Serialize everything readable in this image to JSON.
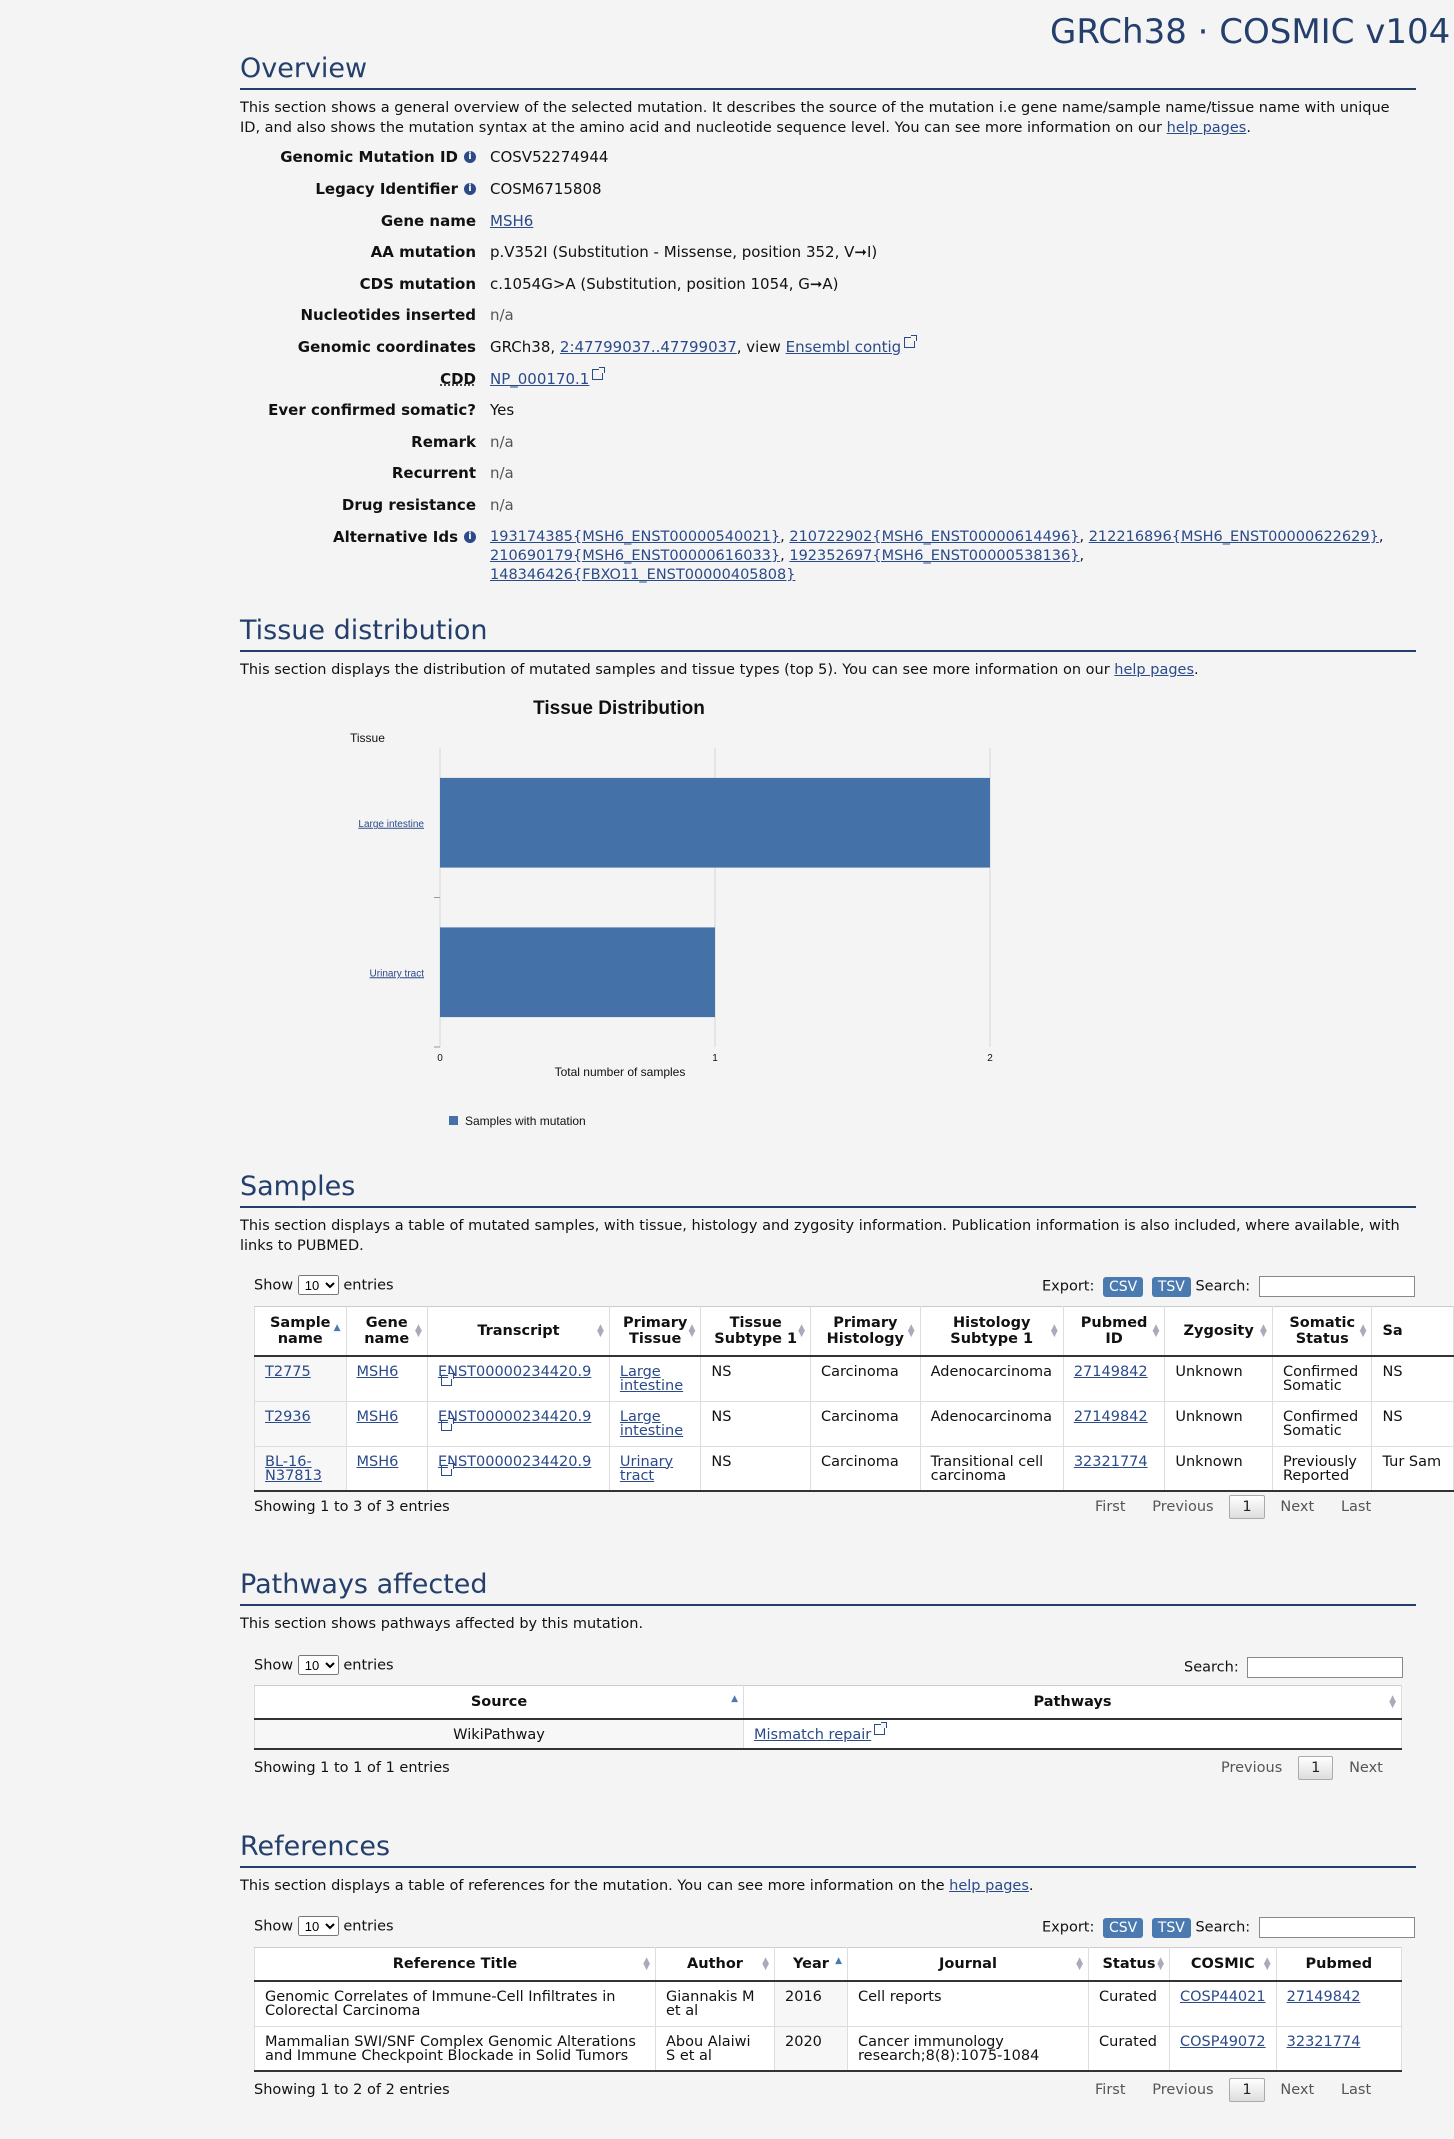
{
  "brand": "GRCh38 · COSMIC v104",
  "overview": {
    "heading": "Overview",
    "intro_pre": "This section shows a general overview of the selected mutation. It describes the source of the mutation i.e gene name/sample name/tissue name with unique ID, and also shows the mutation syntax at the amino acid and nucleotide sequence level. You can see more information on our ",
    "intro_link": "help pages",
    "intro_post": ".",
    "genomic_mutation_id_label": "Genomic Mutation ID",
    "genomic_mutation_id": "COSV52274944",
    "legacy_id_label": "Legacy Identifier",
    "legacy_id": "COSM6715808",
    "gene_name_label": "Gene name",
    "gene_name": "MSH6",
    "aa_mutation_label": "AA mutation",
    "aa_mutation": "p.V352I (Substitution - Missense, position 352, V➞I)",
    "cds_mutation_label": "CDS mutation",
    "cds_mutation": "c.1054G>A (Substitution, position 1054, G➞A)",
    "nucleotides_inserted_label": "Nucleotides inserted",
    "nucleotides_inserted": "n/a",
    "genomic_coordinates_label": "Genomic coordinates",
    "genomic_coordinates_prefix": "GRCh38, ",
    "genomic_coordinates_link": "2:47799037..47799037",
    "genomic_coordinates_mid": ", view ",
    "ensembl_link": "Ensembl contig",
    "cdd_label": "CDD",
    "cdd": "NP_000170.1",
    "ever_confirmed_label": "Ever confirmed somatic?",
    "ever_confirmed": "Yes",
    "remark_label": "Remark",
    "remark": "n/a",
    "recurrent_label": "Recurrent",
    "recurrent": "n/a",
    "drug_resistance_label": "Drug resistance",
    "drug_resistance": "n/a",
    "alternative_ids_label": "Alternative Ids",
    "alternative_ids": [
      "193174385{MSH6_ENST00000540021}",
      "210722902{MSH6_ENST00000614496}",
      "212216896{MSH6_ENST00000622629}",
      "210690179{MSH6_ENST00000616033}",
      "192352697{MSH6_ENST00000538136}",
      "148346426{FBXO11_ENST00000405808}"
    ]
  },
  "tissue": {
    "heading": "Tissue distribution",
    "intro_pre": "This section displays the distribution of mutated samples and tissue types (top 5). You can see more information on our ",
    "intro_link": "help pages",
    "intro_post": "."
  },
  "chart_data": {
    "type": "bar",
    "orientation": "horizontal",
    "title": "Tissue Distribution",
    "categories": [
      "Large intestine",
      "Urinary tract"
    ],
    "series": [
      {
        "name": "Samples with mutation",
        "values": [
          2,
          1
        ]
      }
    ],
    "xlabel": "Total number of samples",
    "ylabel": "Tissue",
    "xlim": [
      0,
      2
    ],
    "xticks": [
      "0",
      "1",
      "2"
    ],
    "grid": true,
    "legend": "bottom-left",
    "colors": [
      "#4472a8"
    ]
  },
  "samples": {
    "heading": "Samples",
    "intro": "This section displays a table of mutated samples, with tissue, histology and zygosity information. Publication information is also included, where available, with links to PUBMED.",
    "show_label": "Show",
    "entries_label": "entries",
    "page_size": "10",
    "export_label": "Export:",
    "csv": "CSV",
    "tsv": "TSV",
    "search_label": "Search:",
    "columns": [
      "Sample name",
      "Gene name",
      "Transcript",
      "Primary Tissue",
      "Tissue Subtype 1",
      "Primary Histology",
      "Histology Subtype 1",
      "Pubmed ID",
      "Zygosity",
      "Somatic Status",
      "Sa"
    ],
    "rows": [
      [
        "T2775",
        "MSH6",
        "ENST00000234420.9",
        "Large intestine",
        "NS",
        "Carcinoma",
        "Adenocarcinoma",
        "27149842",
        "Unknown",
        "Confirmed Somatic",
        "NS"
      ],
      [
        "T2936",
        "MSH6",
        "ENST00000234420.9",
        "Large intestine",
        "NS",
        "Carcinoma",
        "Adenocarcinoma",
        "27149842",
        "Unknown",
        "Confirmed Somatic",
        "NS"
      ],
      [
        "BL-16-N37813",
        "MSH6",
        "ENST00000234420.9",
        "Urinary tract",
        "NS",
        "Carcinoma",
        "Transitional cell carcinoma",
        "32321774",
        "Unknown",
        "Previously Reported",
        "Tur Sam"
      ]
    ],
    "info": "Showing 1 to 3 of 3 entries",
    "pager": {
      "first": "First",
      "previous": "Previous",
      "current": "1",
      "next": "Next",
      "last": "Last"
    }
  },
  "pathways": {
    "heading": "Pathways affected",
    "intro": "This section shows pathways affected by this mutation.",
    "show_label": "Show",
    "entries_label": "entries",
    "page_size": "10",
    "search_label": "Search:",
    "columns": [
      "Source",
      "Pathways"
    ],
    "rows": [
      [
        "WikiPathway",
        "Mismatch repair"
      ]
    ],
    "info": "Showing 1 to 1 of 1 entries",
    "pager": {
      "previous": "Previous",
      "current": "1",
      "next": "Next"
    }
  },
  "references": {
    "heading": "References",
    "intro_pre": "This section displays a table of references for the mutation. You can see more information on the ",
    "intro_link": "help pages",
    "intro_post": ".",
    "show_label": "Show",
    "entries_label": "entries",
    "page_size": "10",
    "export_label": "Export:",
    "csv": "CSV",
    "tsv": "TSV",
    "search_label": "Search:",
    "columns": [
      "Reference Title",
      "Author",
      "Year",
      "Journal",
      "Status",
      "COSMIC",
      "Pubmed"
    ],
    "rows": [
      [
        "Genomic Correlates of Immune-Cell Infiltrates in Colorectal Carcinoma",
        "Giannakis M et al",
        "2016",
        "Cell reports",
        "Curated",
        "COSP44021",
        "27149842"
      ],
      [
        "Mammalian SWI/SNF Complex Genomic Alterations and Immune Checkpoint Blockade in Solid Tumors",
        "Abou Alaiwi S et al",
        "2020",
        "Cancer immunology research;8(8):1075-1084",
        "Curated",
        "COSP49072",
        "32321774"
      ]
    ],
    "info": "Showing 1 to 2 of 2 entries",
    "pager": {
      "first": "First",
      "previous": "Previous",
      "current": "1",
      "next": "Next",
      "last": "Last"
    }
  }
}
